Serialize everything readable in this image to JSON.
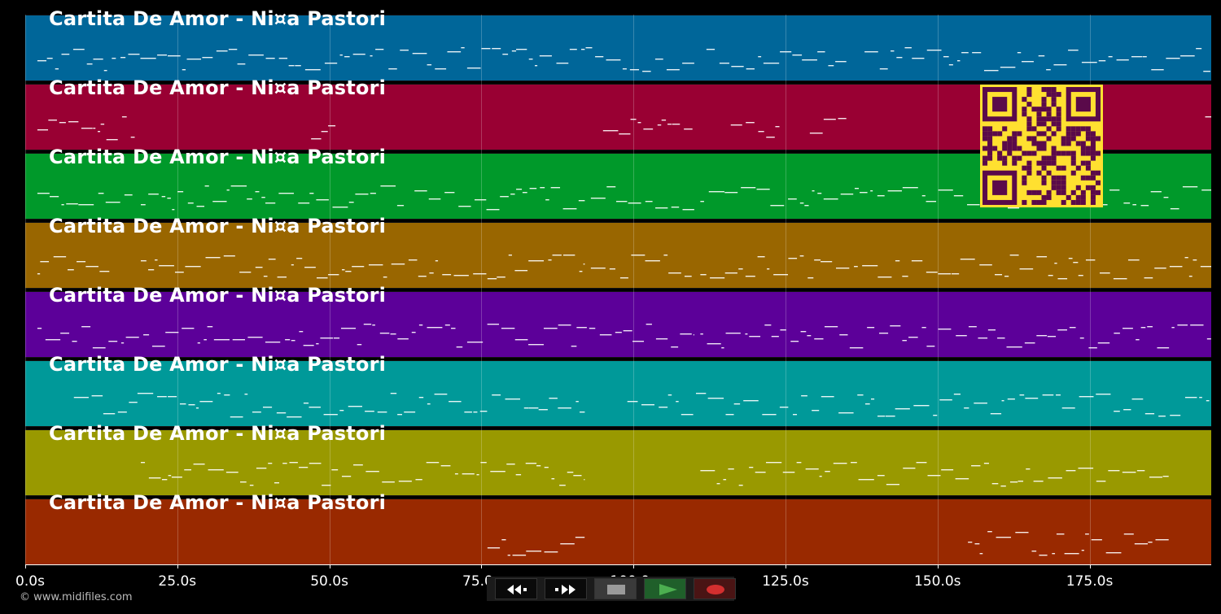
{
  "app": {
    "credit": "© www.midifiles.com"
  },
  "tracks": [
    {
      "title": "Cartita De Amor - Ni¤a Pastori",
      "color": "#006699"
    },
    {
      "title": "Cartita De Amor - Ni¤a Pastori",
      "color": "#990033"
    },
    {
      "title": "Cartita De Amor - Ni¤a Pastori",
      "color": "#00992A"
    },
    {
      "title": "Cartita De Amor - Ni¤a Pastori",
      "color": "#996600"
    },
    {
      "title": "Cartita De Amor - Ni¤a Pastori",
      "color": "#5C0099"
    },
    {
      "title": "Cartita De Amor - Ni¤a Pastori",
      "color": "#009999"
    },
    {
      "title": "Cartita De Amor - Ni¤a Pastori",
      "color": "#999900"
    },
    {
      "title": "Cartita De Amor - Ni¤a Pastori",
      "color": "#992900"
    }
  ],
  "timeline": {
    "ticks": [
      "0.0s",
      "25.0s",
      "50.0s",
      "75.0s",
      "100.0s",
      "125.0s",
      "150.0s",
      "175.0s"
    ],
    "max_seconds": 195
  },
  "transport": {
    "buttons": [
      {
        "name": "rewind-button",
        "icon": "rewind-icon",
        "color": "#ffffff"
      },
      {
        "name": "fast-forward-button",
        "icon": "fast-forward-icon",
        "color": "#ffffff"
      },
      {
        "name": "stop-button",
        "icon": "stop-icon",
        "color": "#9a9a9a"
      },
      {
        "name": "play-button",
        "icon": "play-icon",
        "color": "#4caf50"
      },
      {
        "name": "record-button",
        "icon": "record-icon",
        "color": "#d32f2f"
      }
    ]
  },
  "qr": {
    "icon": "qr-code-icon",
    "fg": "#5a0a4a",
    "bg": "#ffe030"
  }
}
